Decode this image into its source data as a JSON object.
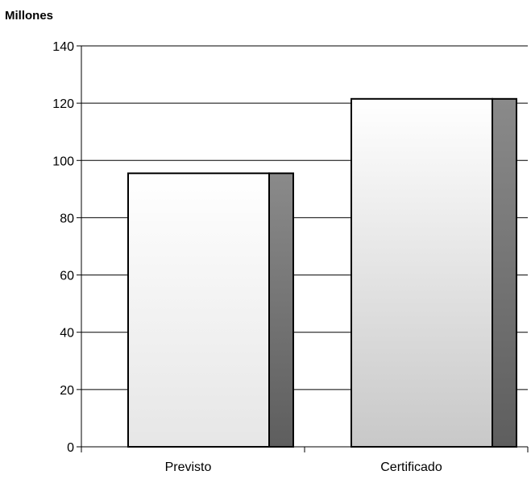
{
  "chart_data": {
    "type": "bar",
    "title": "",
    "unit_label": "Millones",
    "xlabel": "",
    "ylabel": "",
    "categories": [
      "Previsto",
      "Certificado"
    ],
    "values": [
      95.5,
      121.5
    ],
    "ylim": [
      0,
      140
    ],
    "yticks": [
      0,
      20,
      40,
      60,
      80,
      100,
      120,
      140
    ],
    "grid": true,
    "legend": "none",
    "colors": {
      "bar_front_light": "#ffffff",
      "bar_front_dark": "#c8c8c8",
      "bar_side": "#7a7a7a",
      "gridline": "#000000"
    }
  }
}
